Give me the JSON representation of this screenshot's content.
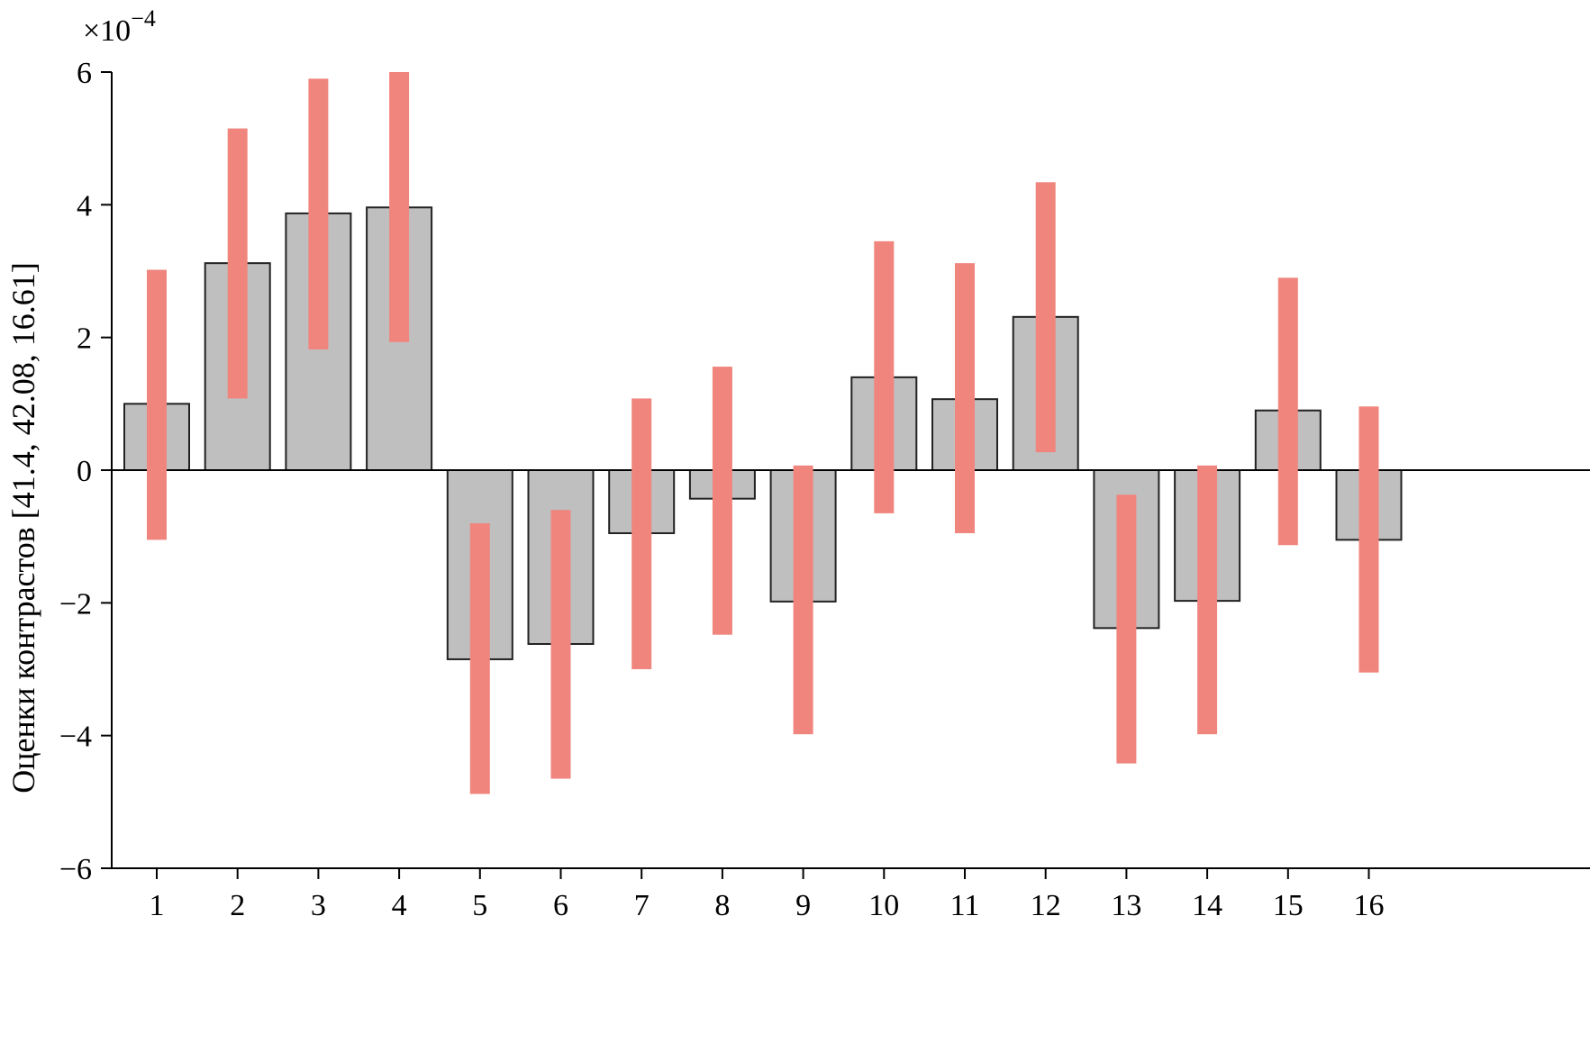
{
  "chart_data": {
    "type": "bar",
    "ylabel": "Оценки контрастов [41.4, 42.08, 16.61]",
    "y_multiplier": {
      "base": "×10",
      "exponent": "−4"
    },
    "ylim": [
      -6,
      6
    ],
    "yticks": [
      -6,
      -4,
      -2,
      0,
      2,
      4,
      6
    ],
    "ytick_labels": [
      "−6",
      "−4",
      "−2",
      "0",
      "2",
      "4",
      "6"
    ],
    "categories": [
      "1",
      "2",
      "3",
      "4",
      "5",
      "6",
      "7",
      "8",
      "9",
      "10",
      "11",
      "12",
      "13",
      "14",
      "15",
      "16"
    ],
    "values": [
      1.0,
      3.12,
      3.87,
      3.96,
      -2.85,
      -2.62,
      -0.95,
      -0.43,
      -1.98,
      1.4,
      1.07,
      2.31,
      -2.38,
      -1.97,
      0.9,
      -1.05
    ],
    "intervals": [
      [
        -1.05,
        3.02
      ],
      [
        1.08,
        5.15
      ],
      [
        1.82,
        5.9
      ],
      [
        1.93,
        6.0
      ],
      [
        -4.88,
        -0.8
      ],
      [
        -4.65,
        -0.6
      ],
      [
        -3.0,
        1.08
      ],
      [
        -2.48,
        1.56
      ],
      [
        -3.98,
        0.07
      ],
      [
        -0.65,
        3.45
      ],
      [
        -0.95,
        3.12
      ],
      [
        0.27,
        4.34
      ],
      [
        -4.42,
        -0.37
      ],
      [
        -3.98,
        0.07
      ],
      [
        -1.13,
        2.9
      ],
      [
        -3.05,
        0.96
      ]
    ],
    "colors": {
      "bar_fill": "#bfbfbf",
      "bar_stroke": "#222222",
      "interval": "#f0857e",
      "axis": "#000000"
    },
    "grid": false,
    "legend": "none"
  }
}
